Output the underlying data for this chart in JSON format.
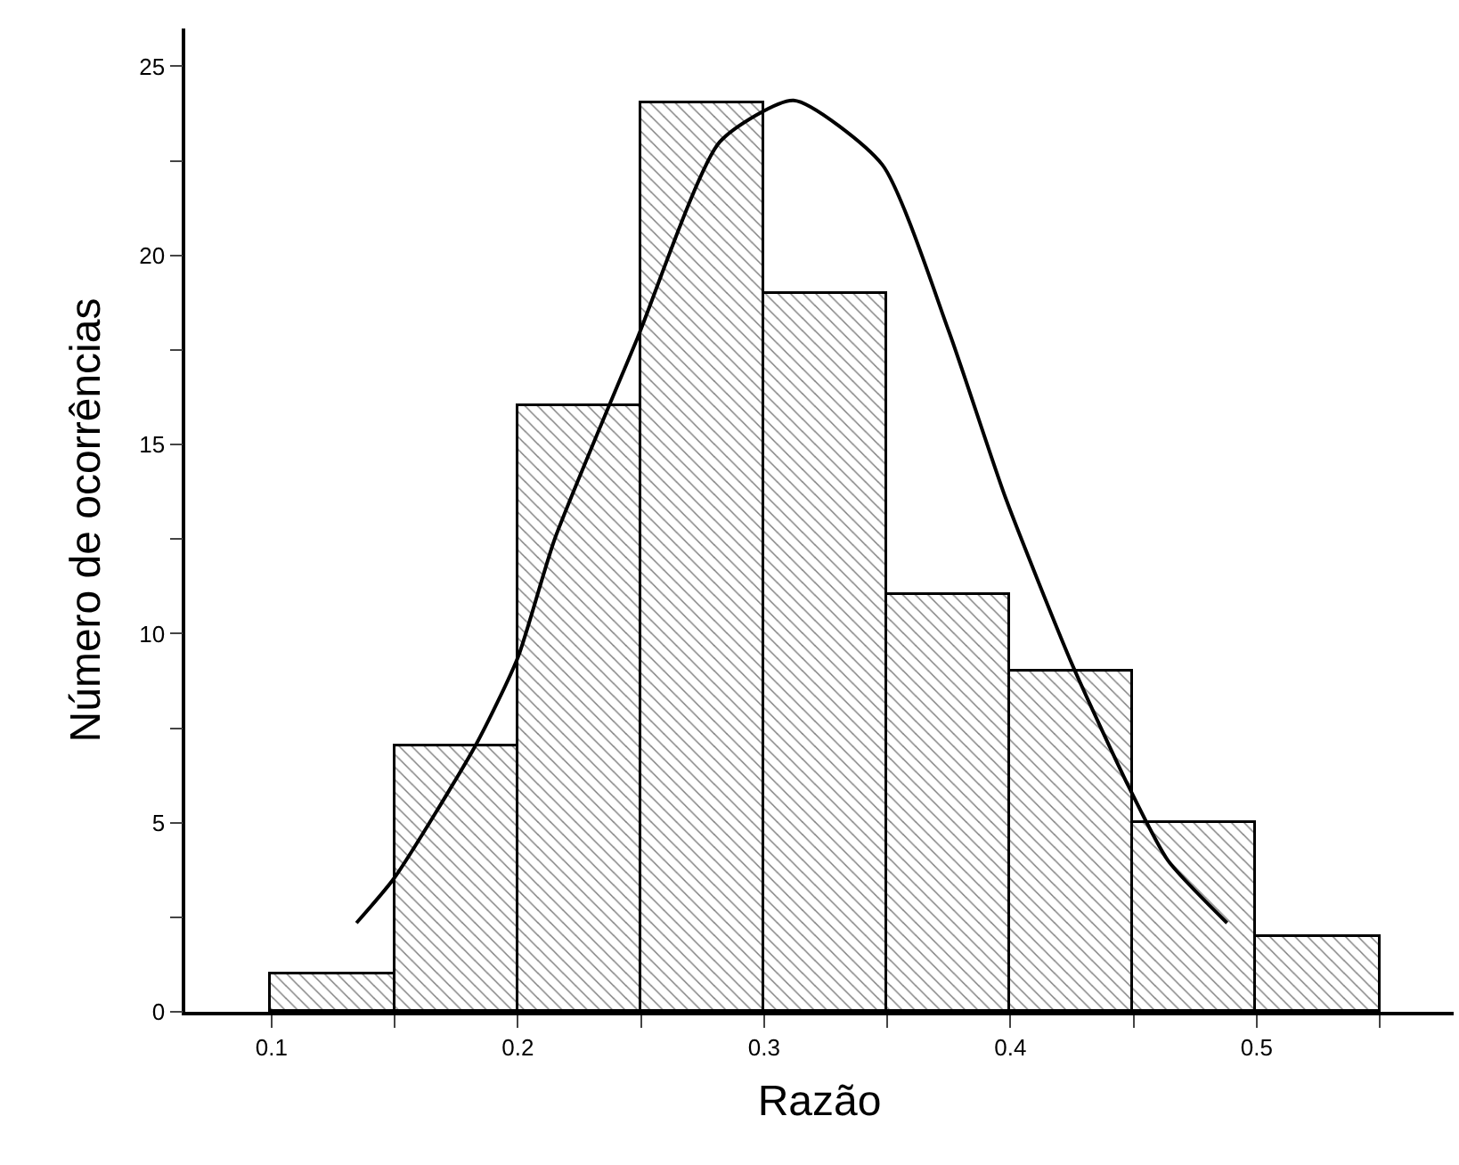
{
  "chart_data": {
    "type": "histogram",
    "xlabel": "Razão",
    "ylabel": "Número de ocorrências",
    "bins": [
      0.1,
      0.15,
      0.2,
      0.25,
      0.3,
      0.35,
      0.4,
      0.45,
      0.5,
      0.55
    ],
    "values": [
      1,
      7,
      16,
      24,
      19,
      11,
      9,
      5,
      2
    ],
    "color": "#000000",
    "series": [
      {
        "type": "line",
        "color": "#000000",
        "x": [
          0.1345,
          0.15,
          0.183,
          0.2,
          0.215,
          0.2485,
          0.282,
          0.312,
          0.348,
          0.375,
          0.398,
          0.425,
          0.448,
          0.464,
          0.488
        ],
        "values": [
          2.35,
          3.55,
          7.06,
          9.36,
          12.5,
          17.8,
          23.0,
          24.1,
          22.4,
          18.0,
          13.6,
          9.2,
          5.96,
          4.0,
          2.35
        ]
      }
    ],
    "xlim": [
      0.065,
      0.58
    ],
    "ylim": [
      0,
      26
    ],
    "xticks": [
      0.1,
      {
        "value": 0.15,
        "label": null
      },
      0.2,
      {
        "value": 0.25,
        "label": null
      },
      0.3,
      {
        "value": 0.35,
        "label": null
      },
      0.4,
      {
        "value": 0.45,
        "label": null
      },
      0.5,
      {
        "value": 0.55,
        "label": null
      }
    ],
    "yticks": [
      0,
      {
        "value": 2.5,
        "label": null
      },
      5,
      {
        "value": 7.5,
        "label": null
      },
      10,
      {
        "value": 12.5,
        "label": null
      },
      15,
      {
        "value": 17.5,
        "label": null
      },
      20,
      {
        "value": 22.5,
        "label": null
      },
      25
    ],
    "marker": "none",
    "line_style": "solid"
  }
}
